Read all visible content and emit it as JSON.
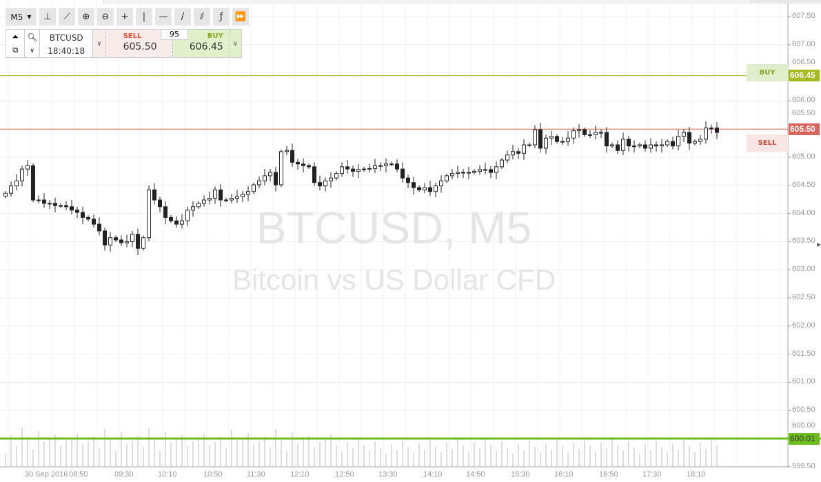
{
  "toolbar": {
    "timeframe": "M5",
    "tools": [
      {
        "name": "bar-chart-icon",
        "glyph": "⊥"
      },
      {
        "name": "line-chart-icon",
        "glyph": "⟋"
      },
      {
        "name": "zoom-in-icon",
        "glyph": "⊕"
      },
      {
        "name": "zoom-out-icon",
        "glyph": "⊖"
      },
      {
        "name": "crosshair-icon",
        "glyph": "+"
      },
      {
        "name": "vertical-line-icon",
        "glyph": "|"
      },
      {
        "name": "horizontal-line-icon",
        "glyph": "—"
      },
      {
        "name": "trend-line-icon",
        "glyph": "/"
      },
      {
        "name": "channel-icon",
        "glyph": "⫽"
      },
      {
        "name": "function-icon",
        "glyph": "ƒ"
      },
      {
        "name": "fast-forward-icon",
        "glyph": "⏩"
      }
    ]
  },
  "panel": {
    "symbol": "BTCUSD",
    "time": "18:40:18",
    "sell_label": "SELL",
    "sell_price": "605.50",
    "buy_label": "BUY",
    "buy_price": "606.45",
    "quantity": "95"
  },
  "watermark": {
    "title": "BTCUSD, M5",
    "subtitle": "Bitcoin vs US Dollar CFD"
  },
  "colors": {
    "buy": "#a4ba1f",
    "sell": "#d9645c",
    "level": "#6cbd1c",
    "up_candle": "#ffffff",
    "down_candle": "#222222"
  },
  "chart_data": {
    "type": "candlestick",
    "symbol": "BTCUSD",
    "timeframe": "M5",
    "y_ticks": [
      "607.50",
      "607.00",
      "606.50",
      "606.00",
      "605.50",
      "605.00",
      "604.50",
      "604.00",
      "603.50",
      "603.00",
      "602.50",
      "602.00",
      "601.50",
      "601.00",
      "600.50",
      "600.00",
      "599.50"
    ],
    "ylim": [
      599.5,
      607.5
    ],
    "x_ticks": [
      "30 Sep 2016",
      "08:50",
      "09:30",
      "10:10",
      "10:50",
      "11:30",
      "12:10",
      "12:50",
      "13:30",
      "14:10",
      "14:50",
      "15:30",
      "16:10",
      "16:50",
      "17:30",
      "18:10"
    ],
    "closes": [
      604.36,
      604.49,
      604.58,
      604.79,
      604.85,
      604.24,
      604.24,
      604.18,
      604.18,
      604.14,
      604.14,
      604.12,
      604.06,
      604.02,
      603.93,
      603.9,
      603.81,
      603.69,
      603.44,
      603.57,
      603.53,
      603.48,
      603.5,
      603.63,
      603.38,
      603.57,
      604.42,
      604.24,
      604.12,
      603.93,
      603.87,
      603.81,
      603.87,
      604.06,
      604.12,
      604.18,
      604.24,
      604.27,
      604.42,
      604.24,
      604.24,
      604.27,
      604.3,
      604.34,
      604.39,
      604.51,
      604.58,
      604.67,
      604.73,
      604.51,
      605.1,
      605.12,
      604.91,
      604.88,
      604.85,
      604.83,
      604.55,
      604.49,
      604.58,
      604.63,
      604.71,
      604.83,
      604.79,
      604.75,
      604.78,
      604.79,
      604.8,
      604.85,
      604.85,
      604.88,
      604.88,
      604.79,
      604.63,
      604.55,
      604.46,
      604.42,
      604.46,
      604.39,
      604.49,
      604.58,
      604.67,
      604.71,
      604.73,
      604.73,
      604.73,
      604.75,
      604.78,
      604.78,
      604.73,
      604.83,
      604.95,
      605.04,
      605.1,
      605.07,
      605.22,
      605.22,
      605.49,
      605.16,
      605.34,
      605.37,
      605.28,
      605.28,
      605.34,
      605.47,
      605.49,
      605.4,
      605.4,
      605.44,
      605.44,
      605.2,
      605.22,
      605.12,
      605.32,
      605.2,
      605.2,
      605.22,
      605.16,
      605.22,
      605.2,
      605.22,
      605.28,
      605.2,
      605.37,
      605.44,
      605.25,
      605.28,
      605.32,
      605.52,
      605.52,
      605.44
    ],
    "lines": [
      {
        "label": "BUY",
        "value": 606.45,
        "tag": "606.45"
      },
      {
        "label": "SELL",
        "value": 605.5,
        "tag": "605.50"
      },
      {
        "label": "",
        "value": 600.01,
        "tag": "600.01"
      }
    ],
    "grid": true
  }
}
